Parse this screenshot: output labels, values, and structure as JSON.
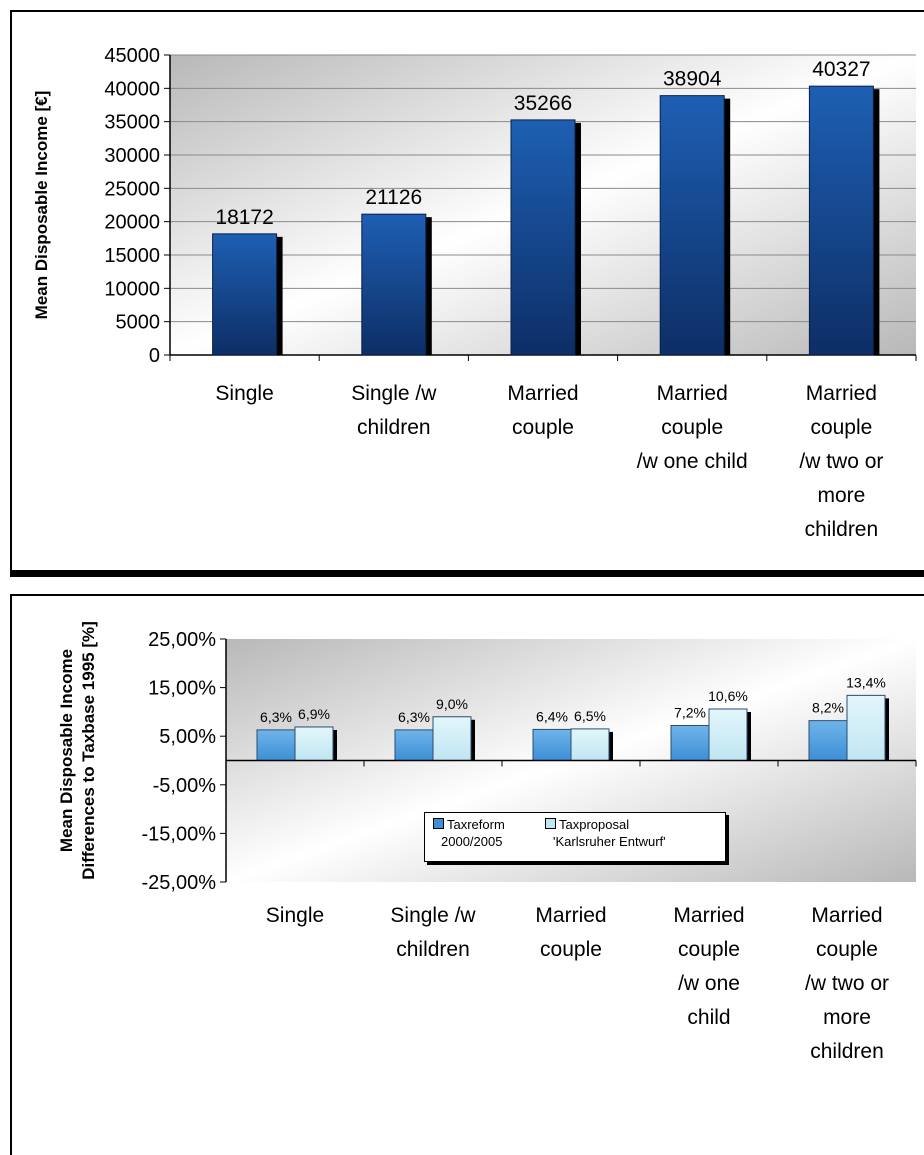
{
  "colors": {
    "bar_dark": "#0d2e66",
    "bar_light": "#1e5fb3",
    "series1": "#3d8fd6",
    "series2": "#bfe6f2",
    "plot_bg_light": "#ffffff",
    "plot_bg_dark": "#b8b8b8"
  },
  "chart_data": [
    {
      "type": "bar",
      "title": "",
      "xlabel": "",
      "ylabel": "Mean Disposable Income [€]",
      "categories": [
        [
          "Single"
        ],
        [
          "Single /w",
          "children"
        ],
        [
          "Married",
          "couple"
        ],
        [
          "Married",
          "couple",
          "/w one child"
        ],
        [
          "Married",
          "couple",
          "/w two or",
          "more",
          "children"
        ]
      ],
      "values": [
        18172,
        21126,
        35266,
        38904,
        40327
      ],
      "data_labels": [
        "18172",
        "21126",
        "35266",
        "38904",
        "40327"
      ],
      "ylim": [
        0,
        45000
      ],
      "yticks": [
        "0",
        "5000",
        "10000",
        "15000",
        "20000",
        "25000",
        "30000",
        "35000",
        "40000",
        "45000"
      ],
      "grid": true,
      "legend": "none"
    },
    {
      "type": "bar",
      "title": "",
      "xlabel": "",
      "ylabel": [
        "Mean Disposable Income",
        "Differences to Taxbase 1995 [%]"
      ],
      "categories": [
        [
          "Single"
        ],
        [
          "Single /w",
          "children"
        ],
        [
          "Married",
          "couple"
        ],
        [
          "Married",
          "couple",
          "/w one",
          "child"
        ],
        [
          "Married",
          "couple",
          "/w two or",
          "more",
          "children"
        ]
      ],
      "series": [
        {
          "name": [
            "Taxreform",
            "2000/2005"
          ],
          "values": [
            6.3,
            6.3,
            6.4,
            7.2,
            8.2
          ],
          "labels": [
            "6,3%",
            "6,3%",
            "6,4%",
            "7,2%",
            "8,2%"
          ]
        },
        {
          "name": [
            "Taxproposal",
            "'Karlsruher Entwurf'"
          ],
          "values": [
            6.9,
            9.0,
            6.5,
            10.6,
            13.4
          ],
          "labels": [
            "6,9%",
            "9,0%",
            "6,5%",
            "10,6%",
            "13,4%"
          ]
        }
      ],
      "ylim": [
        -25,
        25
      ],
      "yticks": [
        "-25,00%",
        "-15,00%",
        "-5,00%",
        "5,00%",
        "15,00%",
        "25,00%"
      ],
      "grid": false,
      "legend": "bottom"
    }
  ]
}
